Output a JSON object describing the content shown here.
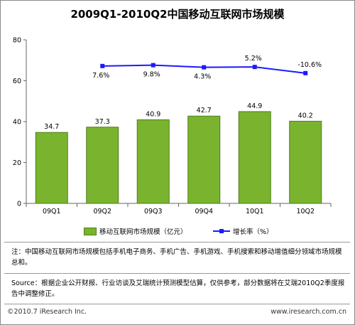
{
  "title": "2009Q1-2010Q2中国移动互联网市场规模",
  "chart_data": {
    "type": "bar",
    "categories": [
      "09Q1",
      "09Q2",
      "09Q3",
      "09Q4",
      "10Q1",
      "10Q2"
    ],
    "series": [
      {
        "name": "移动互联网市场规模（亿元）",
        "type": "bar",
        "values": [
          34.7,
          37.3,
          40.9,
          42.7,
          44.9,
          40.2
        ],
        "labels": [
          "34.7",
          "37.3",
          "40.9",
          "42.7",
          "44.9",
          "40.2"
        ],
        "color": "#7ab32e"
      },
      {
        "name": "增长率（%）",
        "type": "line",
        "values": [
          null,
          7.6,
          9.8,
          4.3,
          5.2,
          -10.6
        ],
        "labels": [
          "",
          "7.6%",
          "9.8%",
          "4.3%",
          "5.2%",
          "-10.6%"
        ],
        "color": "#1a1aff"
      }
    ],
    "yticks": [
      "0",
      "20",
      "40",
      "60",
      "80"
    ],
    "ylim": [
      0,
      80
    ],
    "grid": false,
    "legend_position": "bottom"
  },
  "legend": {
    "bar_label": "移动互联网市场规模（亿元）",
    "line_label": "增长率（%）"
  },
  "notes": {
    "note": "注：中国移动互联网市场规模包括手机电子商务、手机广告、手机游戏、手机搜索和移动增值细分领域市场规模总和。",
    "source": "Source：根据企业公开财报、行业访谈及艾瑞统计预测模型估算，仅供参考，部分数据将在艾瑞2010Q2季度报告中调整修正。"
  },
  "footer": {
    "copyright": "©2010.7 iResearch Inc.",
    "url": "www.iresearch.com.cn"
  }
}
